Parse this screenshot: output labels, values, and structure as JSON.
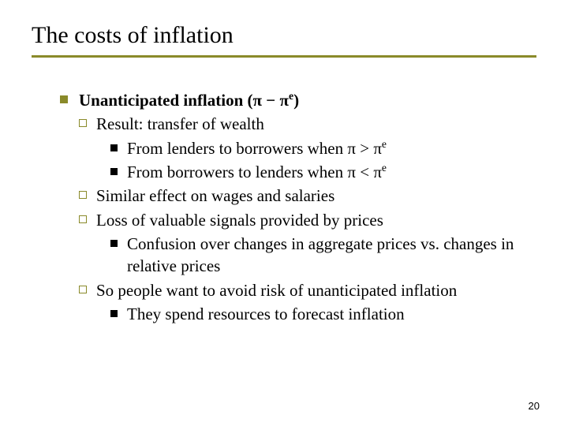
{
  "title": "The costs of inflation",
  "colors": {
    "accent": "#8a8a2a",
    "text": "#000000",
    "background": "#ffffff"
  },
  "typography": {
    "title_fontsize": 30,
    "body_fontsize": 21,
    "font_family": "Times New Roman"
  },
  "l1": {
    "text_before": "Unanticipated inflation (",
    "pi1": "π",
    "minus": " − ",
    "pi2": "π",
    "sup": "e",
    "text_after": ")"
  },
  "l2_result": "Result: transfer of wealth",
  "l3_a": {
    "text_before": "From lenders to borrowers when ",
    "pi1": "π",
    "op": " > ",
    "pi2": "π",
    "sup": "e"
  },
  "l3_b": {
    "text_before": "From borrowers to lenders when ",
    "pi1": "π",
    "op": " < ",
    "pi2": "π",
    "sup": "e"
  },
  "l2_similar": "Similar effect on wages and salaries",
  "l2_loss": "Loss of valuable signals provided by prices",
  "l3_confusion": "Confusion over changes in aggregate prices vs. changes in relative prices",
  "l2_so": "So people want to avoid risk of unanticipated inflation",
  "l3_spend": "They spend resources to forecast inflation",
  "page_number": "20"
}
